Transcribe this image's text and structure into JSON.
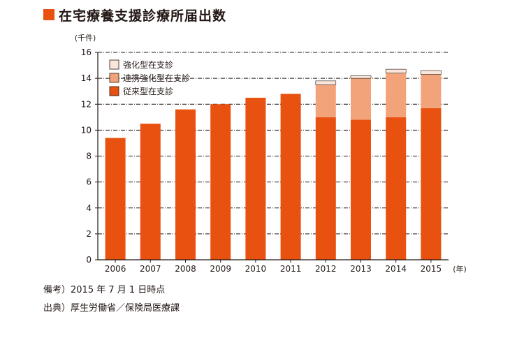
{
  "title": "在宅療養支援診療所届出数",
  "colors": {
    "accent": "#e8510f",
    "conventional": "#e8510f",
    "enhanced_collab": "#f3a37a",
    "enhanced": "#fbe6dc",
    "stroke": "#231815"
  },
  "chart_data": {
    "type": "bar",
    "stacked": true,
    "title": "在宅療養支援診療所届出数",
    "ylabel": "(千件)",
    "xlabel_unit": "(年)",
    "ylim": [
      0,
      16
    ],
    "yticks": [
      0,
      2,
      4,
      6,
      8,
      10,
      12,
      14,
      16
    ],
    "grid": true,
    "legend_position": "top-left",
    "categories": [
      "2006",
      "2007",
      "2008",
      "2009",
      "2010",
      "2011",
      "2012",
      "2013",
      "2014",
      "2015"
    ],
    "series": [
      {
        "name": "従来型在支診",
        "color": "#e8510f",
        "values": [
          9.4,
          10.5,
          11.6,
          12.0,
          12.5,
          12.8,
          11.0,
          10.8,
          11.0,
          11.7
        ]
      },
      {
        "name": "連携強化型在支診",
        "color": "#f3a37a",
        "values": [
          0,
          0,
          0,
          0,
          0,
          0,
          2.5,
          3.2,
          3.4,
          2.6
        ]
      },
      {
        "name": "強化型在支診",
        "color": "#fbe6dc",
        "values": [
          0,
          0,
          0,
          0,
          0,
          0,
          0.3,
          0.2,
          0.3,
          0.3
        ]
      }
    ],
    "legend_order": [
      "強化型在支診",
      "連携強化型在支診",
      "従来型在支診"
    ]
  },
  "notes": {
    "remark": "備考）2015 年 7 月 1 日時点",
    "source": "出典）厚生労働省／保険局医療課"
  }
}
